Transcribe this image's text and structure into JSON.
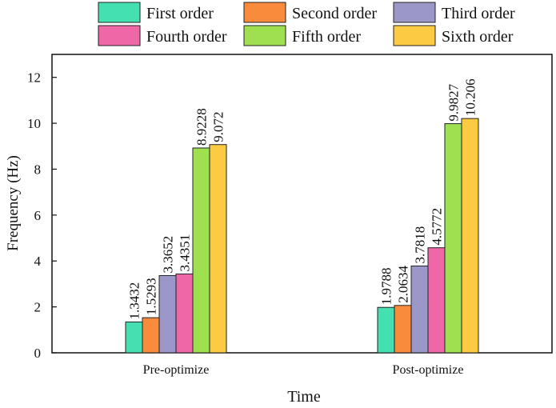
{
  "chart_data": {
    "type": "bar",
    "title": "",
    "xlabel": "Time",
    "ylabel": "Frequency (Hz)",
    "ylim": [
      0,
      13
    ],
    "yticks": [
      "0",
      "2",
      "4",
      "6",
      "8",
      "10",
      "12"
    ],
    "categories": [
      "Pre-optimize",
      "Post-optimize"
    ],
    "legend_position": "top",
    "series": [
      {
        "name": "First order",
        "color": "#45e0b2",
        "values": [
          1.3432,
          1.9788
        ],
        "labels": [
          "1.3432",
          "1.9788"
        ]
      },
      {
        "name": "Second order",
        "color": "#f98b3c",
        "values": [
          1.5293,
          2.0634
        ],
        "labels": [
          "1.5293",
          "2.0634"
        ]
      },
      {
        "name": "Third order",
        "color": "#9b97c9",
        "values": [
          3.3652,
          3.7818
        ],
        "labels": [
          "3.3652",
          "3.7818"
        ]
      },
      {
        "name": "Fourth order",
        "color": "#ef67a7",
        "values": [
          3.4351,
          4.5772
        ],
        "labels": [
          "3.4351",
          "4.5772"
        ]
      },
      {
        "name": "Fifth order",
        "color": "#9ee04f",
        "values": [
          8.9228,
          9.9827
        ],
        "labels": [
          "8.9228",
          "9.9827"
        ]
      },
      {
        "name": "Sixth order",
        "color": "#fdcb41",
        "values": [
          9.072,
          10.206
        ],
        "labels": [
          "9.072",
          "10.206"
        ]
      }
    ]
  }
}
